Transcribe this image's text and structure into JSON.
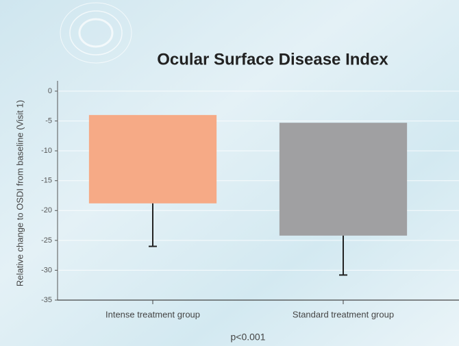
{
  "chart_data": {
    "type": "floating_bar",
    "title": "Ocular Surface Disease Index",
    "ylabel": "Relative change to OSDI from baseline (Visit 1)",
    "note": "p<0.001",
    "categories": [
      "Intense treatment group",
      "Standard treatment group"
    ],
    "bar_start": [
      -4,
      -5.3
    ],
    "values": [
      -18.8,
      -24.2
    ],
    "errors": [
      7.2,
      6.6
    ],
    "colors": [
      "#f6aa86",
      "#a0a0a2"
    ],
    "ylim": [
      -35,
      0
    ],
    "yticks": [
      0,
      -5,
      -10,
      -15,
      -20,
      -25,
      -30,
      -35
    ],
    "grid": true
  }
}
